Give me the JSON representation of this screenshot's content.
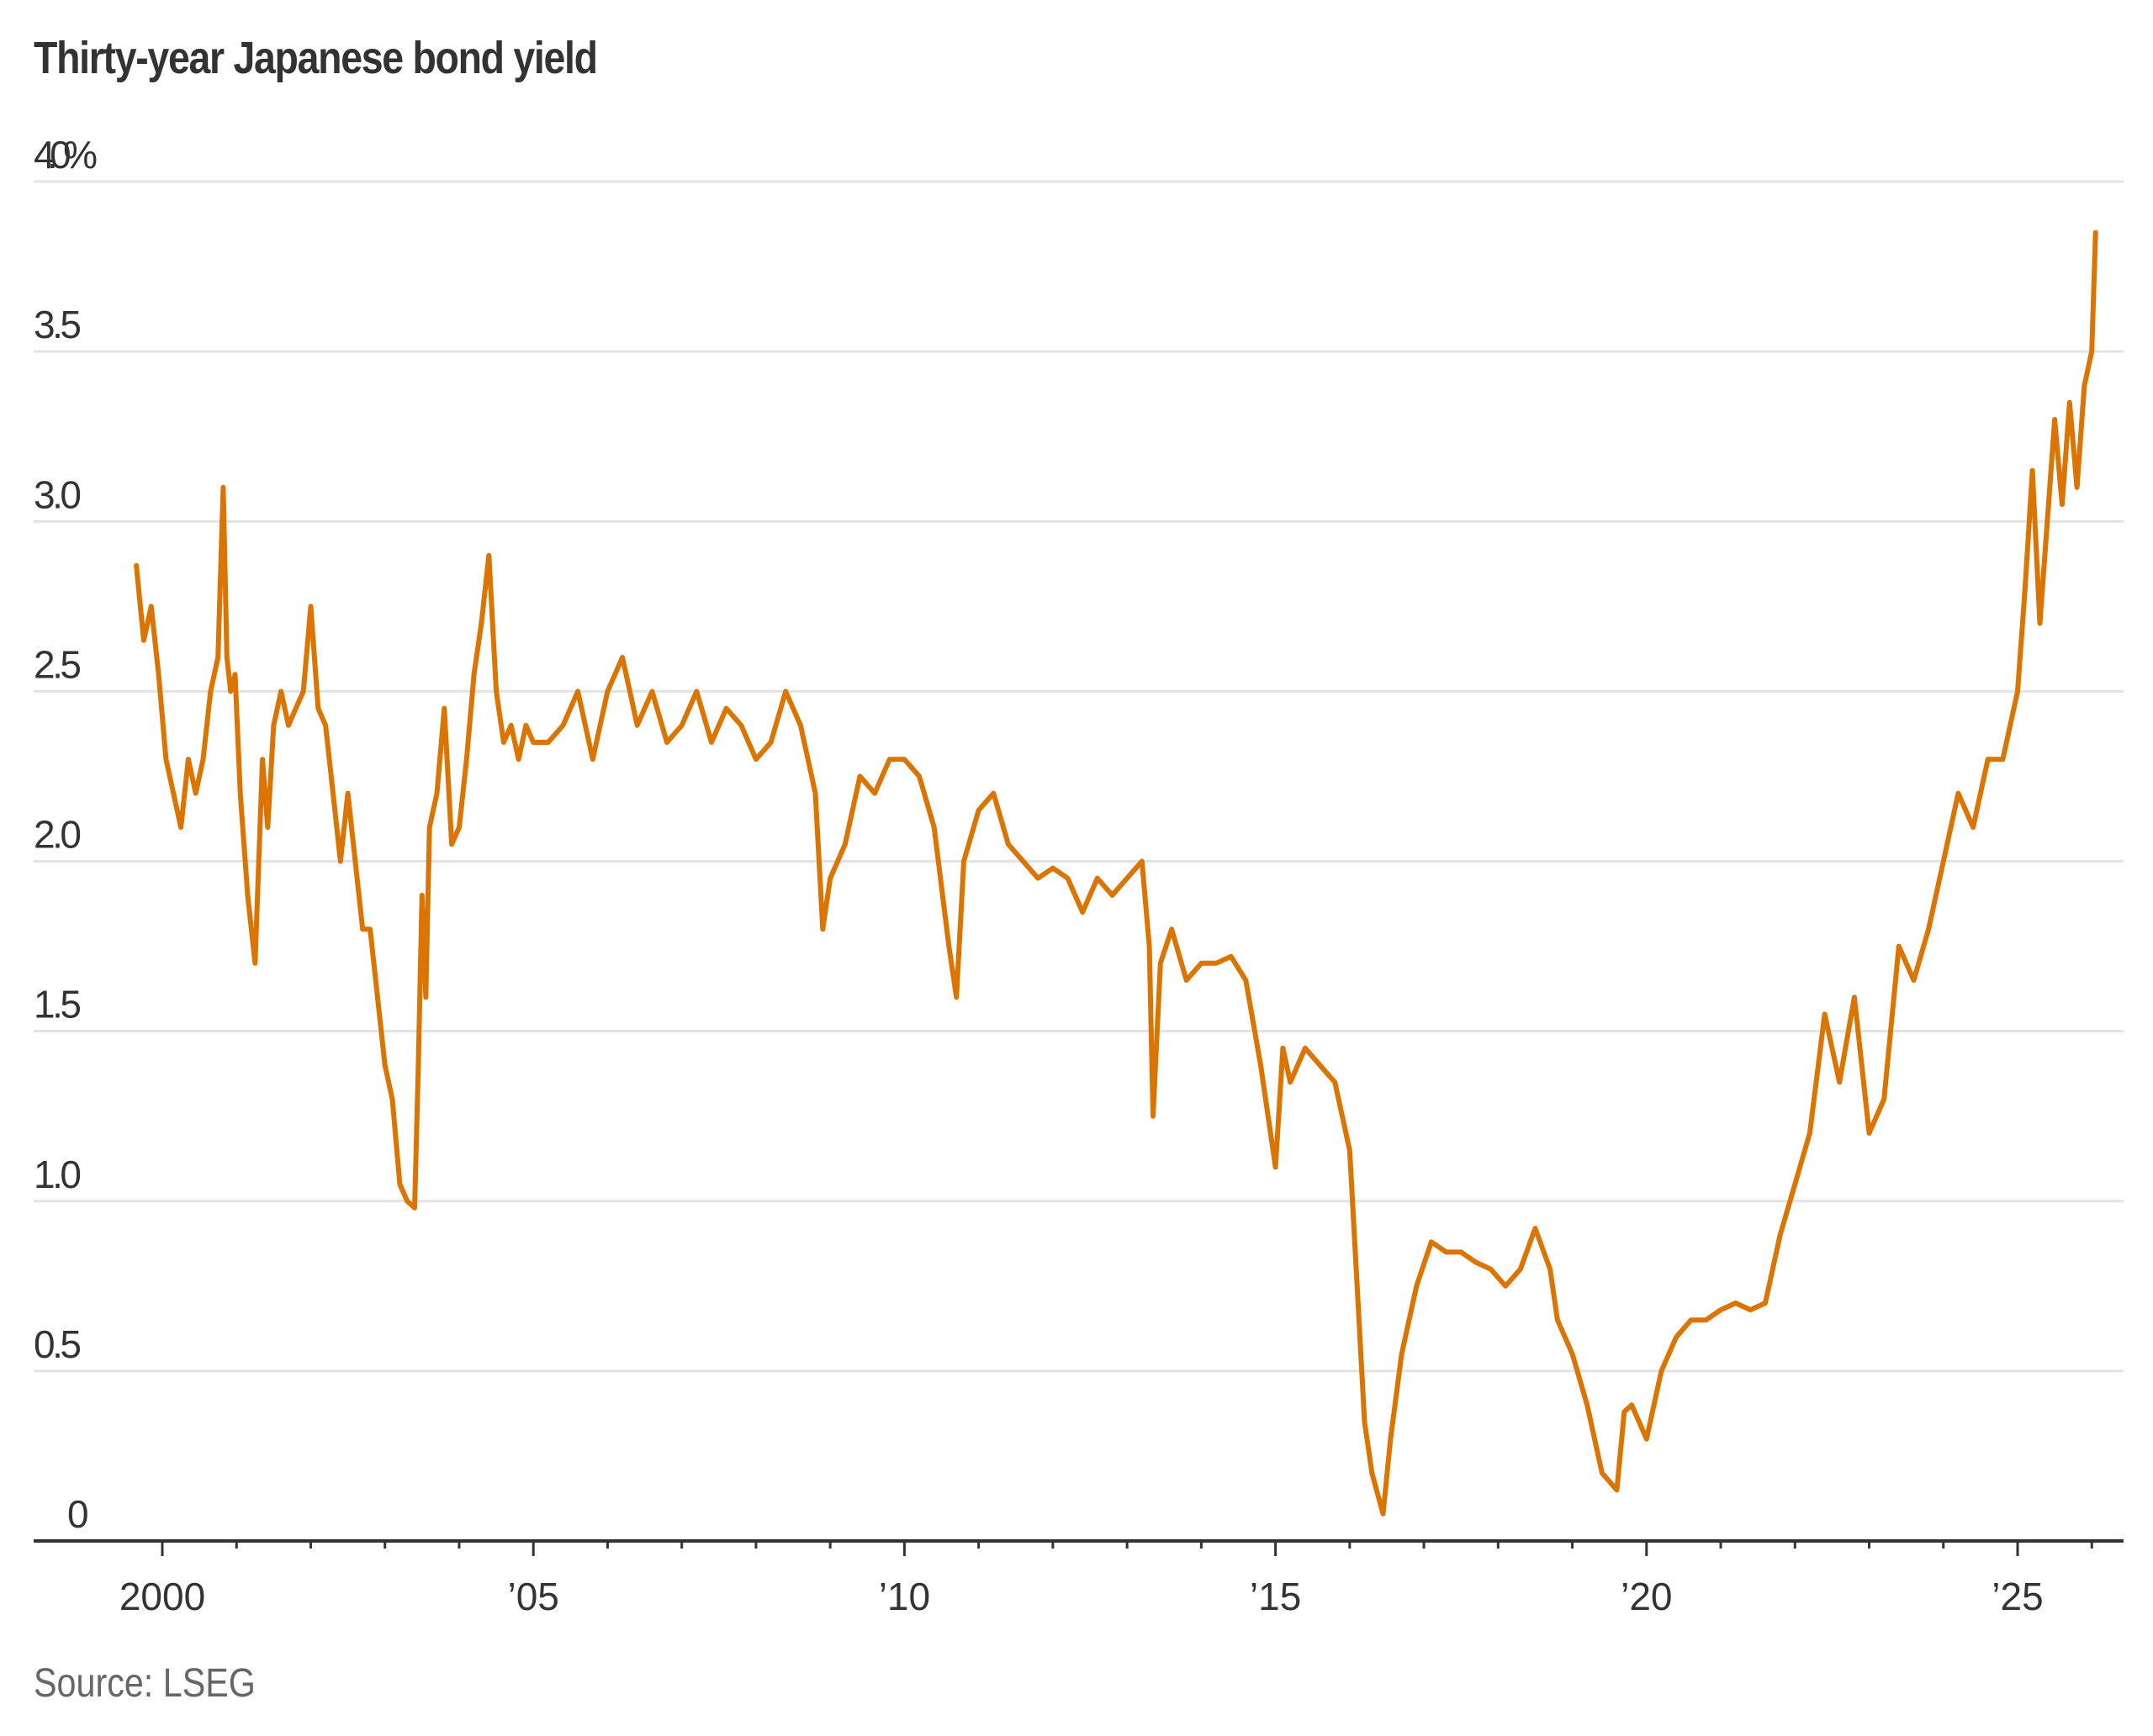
{
  "title": "Thirty-year Japanese bond yield",
  "source": "Source: LSEG",
  "colors": {
    "line": "#DB7400",
    "grid": "#E3E3E3",
    "axis": "#333333",
    "text": "#333333",
    "source_text": "#666666"
  },
  "chart_data": {
    "type": "line",
    "title": "Thirty-year Japanese bond yield",
    "xlabel": "",
    "ylabel": "",
    "ylim": [
      0,
      4.0
    ],
    "y_ticks": [
      {
        "value": 4.0,
        "label": "4.0%"
      },
      {
        "value": 3.5,
        "label": "3.5"
      },
      {
        "value": 3.0,
        "label": "3.0"
      },
      {
        "value": 2.5,
        "label": "2.5"
      },
      {
        "value": 2.0,
        "label": "2.0"
      },
      {
        "value": 1.5,
        "label": "1.5"
      },
      {
        "value": 1.0,
        "label": "1.0"
      },
      {
        "value": 0.5,
        "label": "0.5"
      },
      {
        "value": 0,
        "label": "0"
      }
    ],
    "x_ticks": [
      {
        "value": 2000,
        "label": "2000"
      },
      {
        "value": 2005,
        "label": "’05"
      },
      {
        "value": 2010,
        "label": "’10"
      },
      {
        "value": 2015,
        "label": "’15"
      },
      {
        "value": 2020,
        "label": "’20"
      },
      {
        "value": 2025,
        "label": "’25"
      }
    ],
    "xlim": [
      1998.2,
      2026.4
    ],
    "grid": true,
    "legend": "none",
    "series": [
      {
        "name": "30-year JGB yield (%)",
        "x": [
          1999.65,
          1999.75,
          1999.85,
          1999.95,
          2000.05,
          2000.15,
          2000.25,
          2000.35,
          2000.45,
          2000.55,
          2000.65,
          2000.75,
          2000.82,
          2000.87,
          2000.92,
          2000.98,
          2001.05,
          2001.15,
          2001.25,
          2001.3,
          2001.35,
          2001.42,
          2001.5,
          2001.6,
          2001.7,
          2001.8,
          2001.9,
          2002.0,
          2002.1,
          2002.2,
          2002.3,
          2002.4,
          2002.5,
          2002.6,
          2002.7,
          2002.8,
          2002.9,
          2003.0,
          2003.1,
          2003.2,
          2003.3,
          2003.4,
          2003.45,
          2003.5,
          2003.55,
          2003.6,
          2003.7,
          2003.8,
          2003.9,
          2004.0,
          2004.1,
          2004.2,
          2004.3,
          2004.4,
          2004.5,
          2004.6,
          2004.7,
          2004.8,
          2004.9,
          2005.0,
          2005.2,
          2005.4,
          2005.6,
          2005.8,
          2006.0,
          2006.2,
          2006.4,
          2006.6,
          2006.8,
          2007.0,
          2007.2,
          2007.4,
          2007.6,
          2007.8,
          2008.0,
          2008.2,
          2008.4,
          2008.6,
          2008.8,
          2008.9,
          2009.0,
          2009.2,
          2009.4,
          2009.6,
          2009.8,
          2010.0,
          2010.2,
          2010.4,
          2010.6,
          2010.7,
          2010.8,
          2011.0,
          2011.2,
          2011.4,
          2011.6,
          2011.8,
          2012.0,
          2012.2,
          2012.4,
          2012.6,
          2012.8,
          2013.0,
          2013.2,
          2013.3,
          2013.35,
          2013.45,
          2013.6,
          2013.8,
          2014.0,
          2014.2,
          2014.4,
          2014.6,
          2014.8,
          2015.0,
          2015.1,
          2015.2,
          2015.4,
          2015.6,
          2015.8,
          2016.0,
          2016.1,
          2016.2,
          2016.3,
          2016.45,
          2016.55,
          2016.7,
          2016.9,
          2017.1,
          2017.3,
          2017.5,
          2017.7,
          2017.9,
          2018.1,
          2018.3,
          2018.5,
          2018.7,
          2018.8,
          2019.0,
          2019.2,
          2019.4,
          2019.6,
          2019.7,
          2019.8,
          2020.0,
          2020.2,
          2020.4,
          2020.6,
          2020.8,
          2021.0,
          2021.2,
          2021.4,
          2021.6,
          2021.8,
          2022.0,
          2022.2,
          2022.4,
          2022.6,
          2022.8,
          2023.0,
          2023.2,
          2023.4,
          2023.6,
          2023.8,
          2024.0,
          2024.2,
          2024.4,
          2024.6,
          2024.8,
          2025.0,
          2025.1,
          2025.2,
          2025.3,
          2025.4,
          2025.5,
          2025.6,
          2025.7,
          2025.8,
          2025.9,
          2026.0,
          2026.05
        ],
        "values": [
          2.87,
          2.65,
          2.75,
          2.55,
          2.3,
          2.2,
          2.1,
          2.3,
          2.2,
          2.3,
          2.5,
          2.6,
          3.1,
          2.6,
          2.5,
          2.55,
          2.2,
          1.9,
          1.7,
          2.0,
          2.3,
          2.1,
          2.4,
          2.5,
          2.4,
          2.45,
          2.5,
          2.75,
          2.45,
          2.4,
          2.2,
          2.0,
          2.2,
          2.0,
          1.8,
          1.8,
          1.6,
          1.4,
          1.3,
          1.05,
          1.0,
          0.98,
          1.4,
          1.9,
          1.6,
          2.1,
          2.2,
          2.45,
          2.05,
          2.1,
          2.3,
          2.55,
          2.7,
          2.9,
          2.5,
          2.35,
          2.4,
          2.3,
          2.4,
          2.35,
          2.35,
          2.4,
          2.5,
          2.3,
          2.5,
          2.6,
          2.4,
          2.5,
          2.35,
          2.4,
          2.5,
          2.35,
          2.45,
          2.4,
          2.3,
          2.35,
          2.5,
          2.4,
          2.2,
          1.8,
          1.95,
          2.05,
          2.25,
          2.2,
          2.3,
          2.3,
          2.25,
          2.1,
          1.75,
          1.6,
          2.0,
          2.15,
          2.2,
          2.05,
          2.0,
          1.95,
          1.98,
          1.95,
          1.85,
          1.95,
          1.9,
          1.95,
          2.0,
          1.75,
          1.25,
          1.7,
          1.8,
          1.65,
          1.7,
          1.7,
          1.72,
          1.65,
          1.4,
          1.1,
          1.45,
          1.35,
          1.45,
          1.4,
          1.35,
          1.15,
          0.75,
          0.35,
          0.2,
          0.08,
          0.3,
          0.55,
          0.75,
          0.88,
          0.85,
          0.85,
          0.82,
          0.8,
          0.75,
          0.8,
          0.92,
          0.8,
          0.65,
          0.55,
          0.4,
          0.2,
          0.15,
          0.38,
          0.4,
          0.3,
          0.5,
          0.6,
          0.65,
          0.65,
          0.68,
          0.7,
          0.68,
          0.7,
          0.9,
          1.05,
          1.2,
          1.55,
          1.35,
          1.6,
          1.2,
          1.3,
          1.75,
          1.65,
          1.8,
          2.0,
          2.2,
          2.1,
          2.3,
          2.3,
          2.5,
          2.8,
          3.15,
          2.7,
          3.0,
          3.3,
          3.05,
          3.35,
          3.1,
          3.4,
          3.5,
          3.85
        ]
      }
    ]
  }
}
